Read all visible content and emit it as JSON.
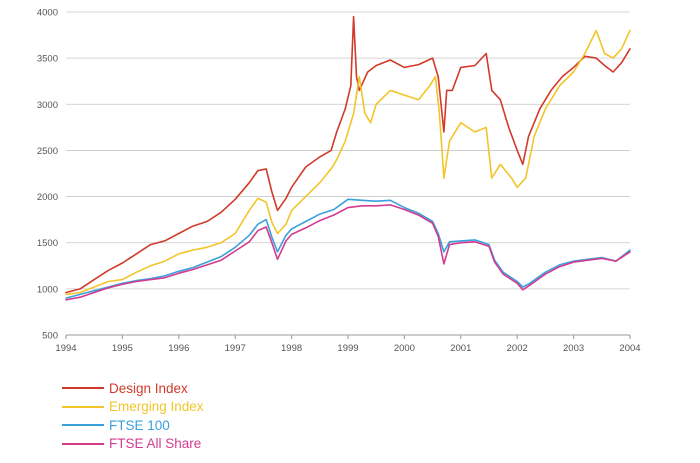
{
  "chart_data": {
    "type": "line",
    "x_ticks": [
      "1994",
      "1995",
      "1996",
      "1997",
      "1998",
      "1999",
      "2000",
      "2001",
      "2002",
      "2003",
      "2004"
    ],
    "y_ticks": [
      500,
      1000,
      1500,
      2000,
      2500,
      3000,
      3500,
      4000
    ],
    "xlim": [
      1994,
      2004
    ],
    "ylim": [
      500,
      4000
    ],
    "grid": "horizontal",
    "legend_position": "bottom-left",
    "series": [
      {
        "name": "Design Index",
        "color": "#d23a2b",
        "x": [
          1994.0,
          1994.25,
          1994.5,
          1994.75,
          1995.0,
          1995.25,
          1995.5,
          1995.75,
          1996.0,
          1996.25,
          1996.5,
          1996.75,
          1997.0,
          1997.25,
          1997.4,
          1997.55,
          1997.65,
          1997.75,
          1997.9,
          1998.0,
          1998.25,
          1998.5,
          1998.7,
          1998.8,
          1998.95,
          1999.05,
          1999.1,
          1999.15,
          1999.2,
          1999.35,
          1999.5,
          1999.75,
          2000.0,
          2000.25,
          2000.5,
          2000.6,
          2000.7,
          2000.75,
          2000.85,
          2001.0,
          2001.25,
          2001.45,
          2001.55,
          2001.7,
          2001.85,
          2002.0,
          2002.1,
          2002.2,
          2002.4,
          2002.6,
          2002.8,
          2003.0,
          2003.2,
          2003.4,
          2003.55,
          2003.7,
          2003.85,
          2004.0
        ],
        "y": [
          960,
          1000,
          1100,
          1200,
          1280,
          1380,
          1480,
          1520,
          1600,
          1680,
          1730,
          1830,
          1970,
          2150,
          2280,
          2300,
          2050,
          1850,
          1980,
          2100,
          2320,
          2430,
          2500,
          2700,
          2950,
          3200,
          3950,
          3300,
          3150,
          3350,
          3420,
          3480,
          3400,
          3430,
          3500,
          3300,
          2700,
          3150,
          3150,
          3400,
          3420,
          3550,
          3150,
          3050,
          2750,
          2500,
          2350,
          2650,
          2950,
          3150,
          3300,
          3400,
          3520,
          3500,
          3420,
          3350,
          3450,
          3600
        ]
      },
      {
        "name": "Emerging Index",
        "color": "#f2c52b",
        "x": [
          1994.0,
          1994.25,
          1994.5,
          1994.75,
          1995.0,
          1995.25,
          1995.5,
          1995.75,
          1996.0,
          1996.25,
          1996.5,
          1996.75,
          1997.0,
          1997.25,
          1997.4,
          1997.55,
          1997.65,
          1997.75,
          1997.9,
          1998.0,
          1998.25,
          1998.5,
          1998.7,
          1998.8,
          1998.95,
          1999.1,
          1999.2,
          1999.3,
          1999.4,
          1999.5,
          1999.75,
          2000.0,
          2000.25,
          2000.45,
          2000.55,
          2000.62,
          2000.7,
          2000.8,
          2001.0,
          2001.25,
          2001.45,
          2001.55,
          2001.7,
          2001.9,
          2002.0,
          2002.15,
          2002.3,
          2002.5,
          2002.75,
          2003.0,
          2003.2,
          2003.4,
          2003.55,
          2003.7,
          2003.85,
          2004.0
        ],
        "y": [
          940,
          960,
          1020,
          1080,
          1100,
          1180,
          1250,
          1300,
          1380,
          1420,
          1450,
          1500,
          1600,
          1850,
          1980,
          1940,
          1720,
          1600,
          1700,
          1850,
          2000,
          2150,
          2300,
          2400,
          2600,
          2900,
          3300,
          2900,
          2800,
          3000,
          3150,
          3100,
          3050,
          3200,
          3300,
          2900,
          2200,
          2600,
          2800,
          2700,
          2750,
          2200,
          2350,
          2200,
          2100,
          2200,
          2650,
          2950,
          3200,
          3350,
          3550,
          3800,
          3550,
          3500,
          3600,
          3800
        ]
      },
      {
        "name": "FTSE 100",
        "color": "#3aa0dc",
        "x": [
          1994.0,
          1994.25,
          1994.5,
          1994.75,
          1995.0,
          1995.25,
          1995.5,
          1995.75,
          1996.0,
          1996.25,
          1996.5,
          1996.75,
          1997.0,
          1997.25,
          1997.4,
          1997.55,
          1997.65,
          1997.75,
          1997.9,
          1998.0,
          1998.25,
          1998.5,
          1998.75,
          1999.0,
          1999.25,
          1999.5,
          1999.75,
          2000.0,
          2000.25,
          2000.5,
          2000.6,
          2000.7,
          2000.8,
          2001.0,
          2001.25,
          2001.5,
          2001.6,
          2001.75,
          2002.0,
          2002.1,
          2002.2,
          2002.5,
          2002.75,
          2003.0,
          2003.25,
          2003.5,
          2003.75,
          2004.0
        ],
        "y": [
          900,
          940,
          980,
          1020,
          1060,
          1090,
          1110,
          1140,
          1190,
          1230,
          1290,
          1350,
          1450,
          1580,
          1700,
          1750,
          1560,
          1400,
          1580,
          1650,
          1730,
          1810,
          1860,
          1970,
          1960,
          1950,
          1960,
          1880,
          1820,
          1730,
          1600,
          1400,
          1510,
          1520,
          1530,
          1480,
          1310,
          1180,
          1080,
          1020,
          1050,
          1180,
          1260,
          1300,
          1320,
          1340,
          1300,
          1420
        ]
      },
      {
        "name": "FTSE All Share",
        "color": "#d43b8f",
        "x": [
          1994.0,
          1994.25,
          1994.5,
          1994.75,
          1995.0,
          1995.25,
          1995.5,
          1995.75,
          1996.0,
          1996.25,
          1996.5,
          1996.75,
          1997.0,
          1997.25,
          1997.4,
          1997.55,
          1997.65,
          1997.75,
          1997.9,
          1998.0,
          1998.25,
          1998.5,
          1998.75,
          1999.0,
          1999.25,
          1999.5,
          1999.75,
          2000.0,
          2000.25,
          2000.5,
          2000.6,
          2000.7,
          2000.8,
          2001.0,
          2001.25,
          2001.5,
          2001.6,
          2001.75,
          2002.0,
          2002.1,
          2002.2,
          2002.5,
          2002.75,
          2003.0,
          2003.25,
          2003.5,
          2003.75,
          2004.0
        ],
        "y": [
          880,
          910,
          960,
          1010,
          1050,
          1080,
          1100,
          1120,
          1170,
          1210,
          1260,
          1310,
          1410,
          1510,
          1630,
          1670,
          1500,
          1320,
          1520,
          1590,
          1660,
          1740,
          1800,
          1880,
          1900,
          1900,
          1910,
          1860,
          1800,
          1710,
          1570,
          1270,
          1480,
          1500,
          1510,
          1460,
          1290,
          1160,
          1060,
          990,
          1030,
          1160,
          1240,
          1290,
          1310,
          1330,
          1300,
          1400
        ]
      }
    ]
  }
}
